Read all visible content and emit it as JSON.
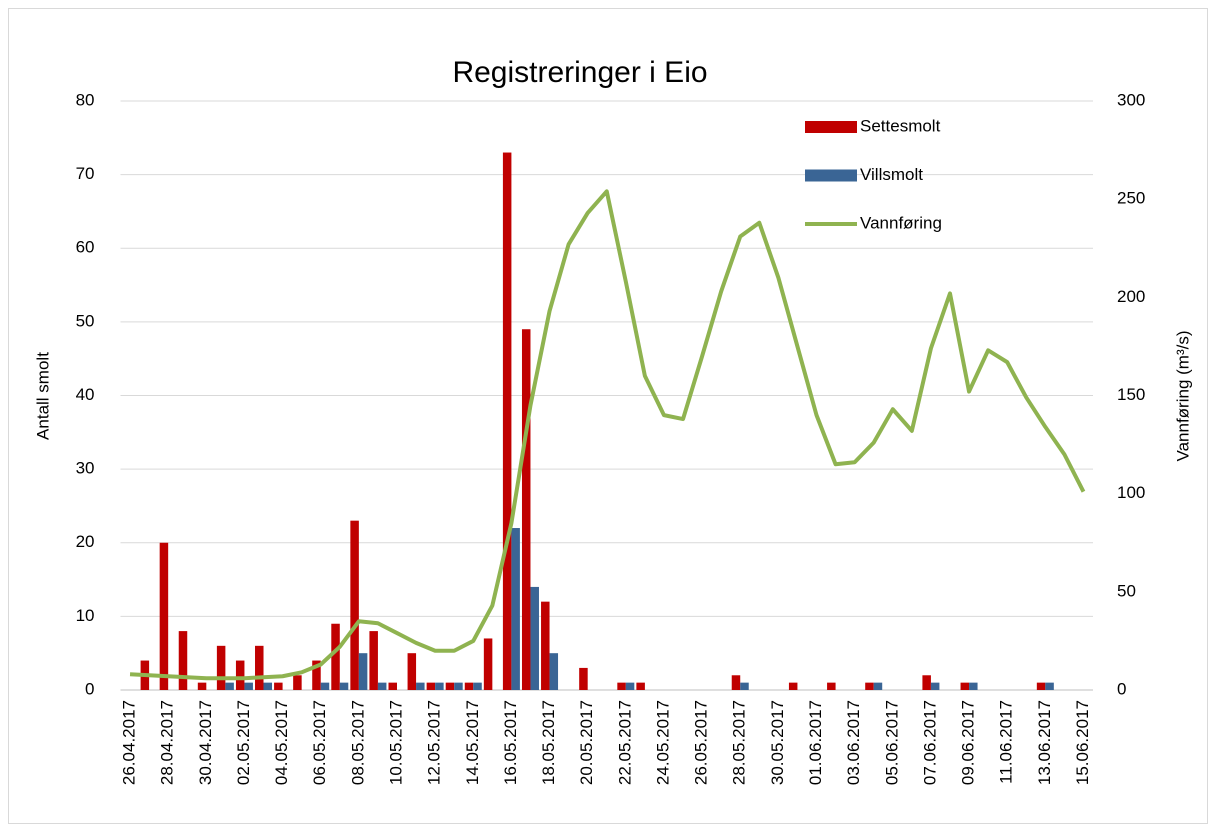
{
  "chart_data": {
    "type": "bar-line",
    "title": "Registreringer i Eio",
    "y_label": "Antall smolt",
    "y2_label": "Vannføring (m³/s)",
    "categories": [
      "26.04.2017",
      null,
      "28.04.2017",
      null,
      "30.04.2017",
      null,
      "02.05.2017",
      null,
      "04.05.2017",
      null,
      "06.05.2017",
      null,
      "08.05.2017",
      null,
      "10.05.2017",
      null,
      "12.05.2017",
      null,
      "14.05.2017",
      null,
      "16.05.2017",
      null,
      "18.05.2017",
      null,
      "20.05.2017",
      null,
      "22.05.2017",
      null,
      "24.05.2017",
      null,
      "26.05.2017",
      null,
      "28.05.2017",
      null,
      "30.05.2017",
      null,
      "01.06.2017",
      null,
      "03.06.2017",
      null,
      "05.06.2017",
      null,
      "07.06.2017",
      null,
      "09.06.2017",
      null,
      "11.06.2017",
      null,
      "13.06.2017",
      null,
      "15.06.2017"
    ],
    "series": [
      {
        "name": "Settesmolt",
        "type": "bar",
        "color": "#c00000",
        "values": [
          0,
          4,
          20,
          8,
          1,
          6,
          4,
          6,
          1,
          2,
          4,
          9,
          23,
          8,
          1,
          5,
          1,
          1,
          1,
          7,
          73,
          49,
          12,
          0,
          3,
          0,
          1,
          1,
          0,
          0,
          0,
          0,
          2,
          0,
          0,
          1,
          0,
          1,
          0,
          1,
          0,
          0,
          2,
          0,
          1,
          0,
          0,
          0,
          1,
          0,
          0
        ]
      },
      {
        "name": "Villsmolt",
        "type": "bar",
        "color": "#3a6595",
        "values": [
          0,
          0,
          0,
          0,
          0,
          1,
          1,
          1,
          0,
          0,
          1,
          1,
          5,
          1,
          0,
          1,
          1,
          1,
          1,
          0,
          22,
          14,
          5,
          0,
          0,
          0,
          1,
          0,
          0,
          0,
          0,
          0,
          1,
          0,
          0,
          0,
          0,
          0,
          0,
          1,
          0,
          0,
          1,
          0,
          1,
          0,
          0,
          0,
          1,
          0,
          0
        ]
      },
      {
        "name": "Vannføring",
        "type": "line",
        "axis": "y2",
        "color": "#8fb350",
        "values": [
          8,
          7.5,
          7,
          6.5,
          6,
          6,
          6,
          6.5,
          7,
          9,
          13,
          22,
          35,
          34,
          29,
          24,
          20,
          20,
          25,
          43,
          85,
          145,
          193,
          227,
          243,
          254,
          208,
          160,
          140,
          138,
          170,
          203,
          231,
          238,
          210,
          175,
          140,
          115,
          116,
          126,
          143,
          132,
          174,
          202,
          152,
          173,
          167,
          149,
          134,
          120,
          101
        ]
      }
    ],
    "ylim": [
      0,
      80
    ],
    "yticks": [
      0,
      10,
      20,
      30,
      40,
      50,
      60,
      70,
      80
    ],
    "y2lim": [
      0,
      300
    ],
    "y2ticks": [
      0,
      50,
      100,
      150,
      200,
      250,
      300
    ],
    "grid": true,
    "legend": "top-right"
  }
}
